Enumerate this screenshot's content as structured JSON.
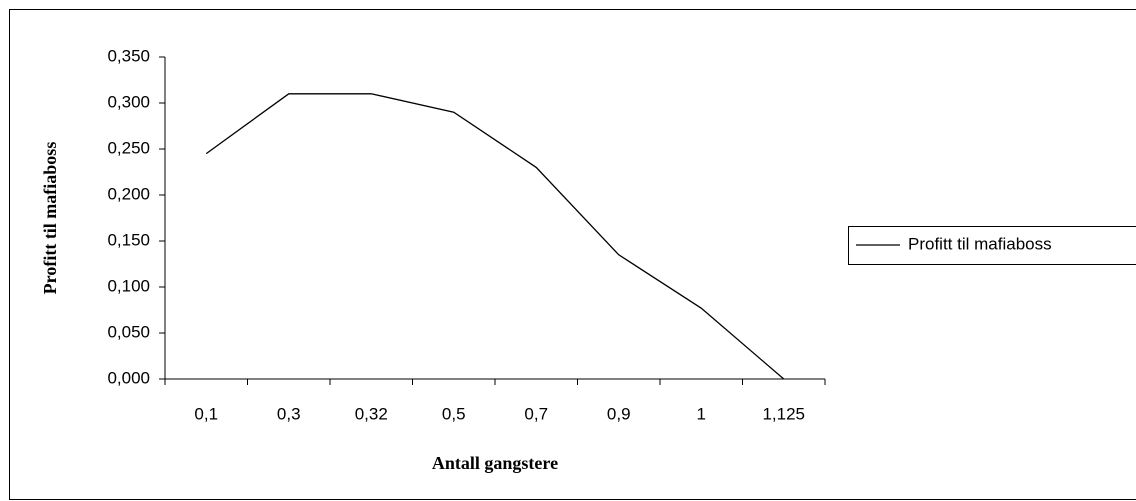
{
  "chart_data": {
    "type": "line",
    "x_label": "Antall gangstere",
    "y_label": "Profitt til mafiaboss",
    "categories": [
      "0,1",
      "0,3",
      "0,32",
      "0,5",
      "0,7",
      "0,9",
      "1",
      "1,125"
    ],
    "series": [
      {
        "name": "Profitt til mafiaboss",
        "color": "#000000",
        "values": [
          0.245,
          0.31,
          0.31,
          0.29,
          0.23,
          0.135,
          0.077,
          0.0
        ]
      }
    ],
    "ylim": [
      0,
      0.35
    ],
    "yticks": [
      {
        "value": 0,
        "label": "0,000"
      },
      {
        "value": 0.05,
        "label": "0,050"
      },
      {
        "value": 0.1,
        "label": "0,100"
      },
      {
        "value": 0.15,
        "label": "0,150"
      },
      {
        "value": 0.2,
        "label": "0,200"
      },
      {
        "value": 0.25,
        "label": "0,250"
      },
      {
        "value": 0.3,
        "label": "0,300"
      },
      {
        "value": 0.35,
        "label": "0,350"
      }
    ],
    "grid": false,
    "legend": "right"
  }
}
